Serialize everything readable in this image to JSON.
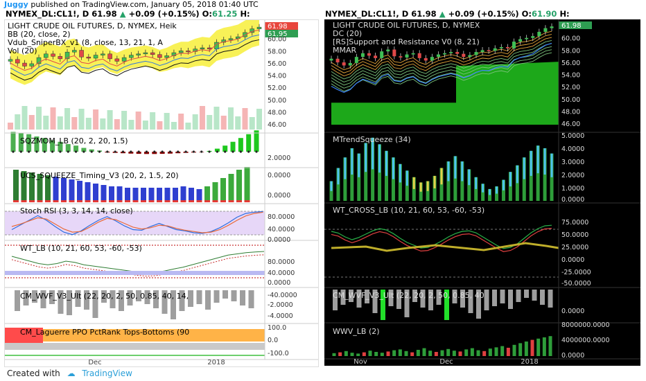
{
  "header": {
    "author": "Juggy",
    "published": "published on TradingView.com, January 05, 2018 01:40 UTC"
  },
  "left": {
    "ticker_line": {
      "symbol": "NYMEX_DL:CL1!, D",
      "price": "61.98",
      "change": "+0.09 (+0.15%)",
      "open_label": "O:",
      "open_value": "61.25",
      "h_label": "H:"
    },
    "labels": [
      "LIGHT CRUDE OIL FUTURES, D, NYMEX, Heik",
      "BB (20, close, 2)",
      "Vdub_SniperBX_v1 (8, close, 13, 21, 1, A",
      "Vol (20)",
      "SQZMOM_LB (20, 2, 20, 1.5)",
      "UCS_SQUEEZE_Timing_V3 (20, 2, 1.5, 20)",
      "Stoch RSI (3, 3, 14, 14, close)",
      "WT_LB (10, 21, 60, 53, -60, -53)",
      "CM_WVF_V3_Ult (22, 20, 2, 50, 0.85, 40, 14,",
      "CM_Laguerre PPO PctRank Tops-Bottoms (90"
    ],
    "price_tag_1": "61.98",
    "price_tag_2": "61.95",
    "axes": [
      [
        "60.00",
        "58.00",
        "56.00",
        "54.00",
        "52.00",
        "50.00",
        "48.00",
        "46.00"
      ],
      [
        "2.0000",
        "0.0000"
      ],
      [
        "0.0000"
      ],
      [
        "80.0000",
        "40.0000",
        "0.0000"
      ],
      [
        "80.0000",
        "40.0000",
        "0.0000",
        "-40.0000"
      ],
      [
        "-2.0000",
        "-4.0000"
      ],
      [
        "100.0",
        "0.0",
        "-100.0"
      ]
    ],
    "x_ticks": [
      "Dec",
      "2018"
    ]
  },
  "right": {
    "ticker_line": {
      "symbol": "NYMEX_DL:CL1!, D",
      "price": "61.98",
      "change": "+0.09 (+0.15%)",
      "open_label": "O:",
      "open_value": "61.90",
      "h_label": "H:"
    },
    "labels": [
      "LIGHT CRUDE OIL FUTURES, D, NYMEX",
      "DC (20)",
      "[RS]Support and Resistance V0 (8, 21)",
      "MMAR",
      "MTrendSqueeze (34)",
      "WT_CROSS_LB (10, 21, 60, 53, -60, -53)",
      "CM_WVF_V3_Ult (22, 20, 2, 50, 0.85, 40",
      "WWV_LB (2)"
    ],
    "price_tag": "61.98",
    "axes": [
      [
        "60.00",
        "58.00",
        "56.00",
        "54.00",
        "52.00",
        "50.00",
        "48.00",
        "46.00"
      ],
      [
        "5.0000",
        "4.0000",
        "3.0000",
        "2.0000",
        "1.0000",
        "0.0000"
      ],
      [
        "75.0000",
        "50.0000",
        "25.0000",
        "0.0000",
        "-25.0000",
        "-50.0000"
      ],
      [
        "0.0000"
      ],
      [
        "8000000.0000",
        "4000000.0000",
        "0.0000"
      ]
    ],
    "x_ticks": [
      "Nov",
      "Dec",
      "2018"
    ]
  },
  "footer": {
    "created": "Created with",
    "brand": "TradingView"
  },
  "colors": {
    "up": "#26a269",
    "down": "#e03a3a",
    "green_bright": "#22d32a",
    "tag_red": "#e8453c",
    "tag_green": "#2e9e52",
    "accent": "#2196f3"
  },
  "chart_data": [
    {
      "type": "line",
      "title": "LIGHT CRUDE OIL FUTURES, D, NYMEX, Heik",
      "x_ticks": [
        "Dec",
        "2018"
      ],
      "ylim": [
        45,
        62
      ],
      "series": [
        {
          "name": "LIGHT CRUDE OIL FUTURES",
          "values": [
            56.7,
            56.1,
            55.6,
            56.0,
            57.0,
            57.6,
            57.2,
            56.8,
            57.9,
            58.2,
            57.1,
            56.9,
            57.4,
            57.6,
            56.8,
            56.4,
            57.0,
            57.4,
            57.6,
            57.8,
            57.5,
            57.0,
            57.3,
            57.8,
            58.1,
            58.0,
            58.4,
            58.6,
            58.4,
            59.5,
            59.9,
            60.1,
            60.4,
            61.1,
            61.7,
            61.98
          ]
        }
      ]
    },
    {
      "type": "bar",
      "title": "SQZMOM_LB (20, 2, 20, 1.5)",
      "ylim": [
        -0.5,
        3
      ],
      "values": [
        2.6,
        2.5,
        2.3,
        2.0,
        1.8,
        1.5,
        1.3,
        1.0,
        0.8,
        0.5,
        0.3,
        0.15,
        -0.1,
        -0.15,
        -0.2,
        -0.25,
        -0.28,
        -0.3,
        -0.3,
        -0.28,
        -0.25,
        -0.2,
        -0.15,
        -0.1,
        -0.05,
        0.1,
        0.4,
        0.8,
        1.3,
        1.8,
        2.3,
        2.8
      ]
    },
    {
      "type": "bar",
      "title": "MTrendSqueeze (34)",
      "ylim": [
        0,
        5
      ],
      "values": [
        1.5,
        2.5,
        3.3,
        4.0,
        3.6,
        4.4,
        4.8,
        4.3,
        3.8,
        3.3,
        2.8,
        2.3,
        1.8,
        1.4,
        1.5,
        1.9,
        2.5,
        3.0,
        3.4,
        3.0,
        2.4,
        1.8,
        1.3,
        0.9,
        1.1,
        1.6,
        2.2,
        2.7,
        3.3,
        3.8,
        4.2,
        4.0,
        3.6
      ]
    },
    {
      "type": "bar",
      "title": "WWV_LB (2)",
      "ylim": [
        0,
        8000000
      ],
      "values": [
        700000,
        900000,
        1200000,
        800000,
        600000,
        900000,
        1300000,
        1000000,
        800000,
        1100000,
        1400000,
        1600000,
        1200000,
        900000,
        1500000,
        1900000,
        1300000,
        1000000,
        1400000,
        1700000,
        1300000,
        1100000,
        1600000,
        1900000,
        1400000,
        1200000,
        1800000,
        2100000,
        2400000,
        2000000,
        2700000,
        3100000,
        3500000,
        3900000,
        4200000,
        4500000,
        4800000
      ]
    }
  ]
}
